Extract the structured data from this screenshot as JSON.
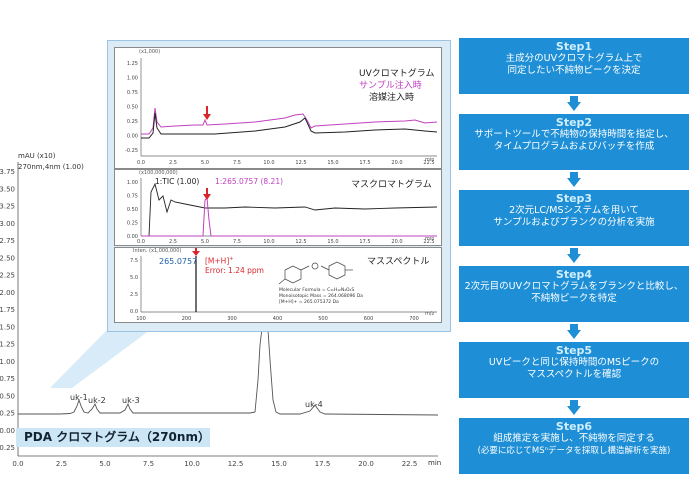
{
  "pda": {
    "ylabel_unit": "mAU (x10)",
    "ylabel_channel": "270nm,4nm (1.00)",
    "yticks": [
      "3.75",
      "3.50",
      "3.25",
      "3.00",
      "2.75",
      "2.50",
      "2.25",
      "2.00",
      "1.75",
      "1.50",
      "1.25",
      "1.00",
      "0.75",
      "0.50",
      "0.25",
      "0.00",
      "-0.25"
    ],
    "xticks": [
      "0.0",
      "2.5",
      "5.0",
      "7.5",
      "10.0",
      "12.5",
      "15.0",
      "17.5",
      "20.0",
      "22.5"
    ],
    "xunit": "min",
    "peaks": [
      "uk-1",
      "uk-2",
      "uk-3",
      "uk-4"
    ],
    "title": "PDA クロマトグラム（270nm）"
  },
  "uv": {
    "corner": "(x1,000)",
    "yticks": [
      "1.25",
      "1.00",
      "0.75",
      "0.50",
      "0.25",
      "0.00",
      "-0.25"
    ],
    "xticks": [
      "0.0",
      "2.5",
      "5.0",
      "7.5",
      "10.0",
      "12.5",
      "15.0",
      "17.5",
      "20.0",
      "22.5"
    ],
    "xunit": "min",
    "title": "UVクロマトグラム",
    "legend_sample": "サンプル注入時",
    "legend_solvent": "溶媒注入時"
  },
  "ms": {
    "corner": "(x100,000,000)",
    "yticks": [
      "1.00",
      "0.75",
      "0.50",
      "0.25",
      "0.00"
    ],
    "xticks": [
      "0.0",
      "2.5",
      "5.0",
      "7.5",
      "10.0",
      "12.5",
      "15.0",
      "17.5",
      "20.0",
      "22.5"
    ],
    "xunit": "min",
    "tic_label": "1:TIC (1.00)",
    "ion_label": "1:265.0757 (8.21)",
    "title": "マスクロマトグラム"
  },
  "spec": {
    "corner": "Inten. (x1,000,000)",
    "yticks": [
      "7.5",
      "5.0",
      "2.5",
      "0.0"
    ],
    "xticks": [
      "100",
      "200",
      "300",
      "400",
      "500",
      "600",
      "700"
    ],
    "xunit": "m/z",
    "mass": "265.0757",
    "ion": "[M+H]",
    "ion_sup": "+",
    "error": "Error: 1.24 ppm",
    "title": "マススペクトル",
    "mf_label": "Molecular Formula",
    "mf_value": "= C₁₁H₁₂N₄O₂S",
    "mono_label": "Monoisotopic Mass",
    "mono_value": "= 264.068096 Da",
    "mh_label": "[M+H]+",
    "mh_value": "= 265.075372 Da"
  },
  "steps": [
    {
      "title": "Step1",
      "lines": [
        "主成分のUVクロマトグラム上で",
        "同定したい不純物ピークを決定"
      ]
    },
    {
      "title": "Step2",
      "lines": [
        "サポートツールで不純物の保持時間を指定し、",
        "タイムプログラムおよびバッチを作成"
      ]
    },
    {
      "title": "Step3",
      "lines": [
        "2次元LC/MSシステムを用いて",
        "サンプルおよびブランクの分析を実施"
      ]
    },
    {
      "title": "Step4",
      "lines": [
        "2次元目のUVクロマトグラムをブランクと比較し、",
        "不純物ピークを特定"
      ]
    },
    {
      "title": "Step5",
      "lines": [
        "UVピークと同じ保持時間のMSピークの",
        "マススペクトルを確認"
      ]
    },
    {
      "title": "Step6",
      "lines": [
        "組成推定を実施し、不純物を同定する",
        "(必要に応じてMSⁿデータを採取し構造解析を実施)"
      ]
    }
  ],
  "colors": {
    "step_bg": "#1e8fd6",
    "accent_red": "#d9262c",
    "sample_trace": "#c040c0",
    "panel_bg": "#dcecf7"
  }
}
